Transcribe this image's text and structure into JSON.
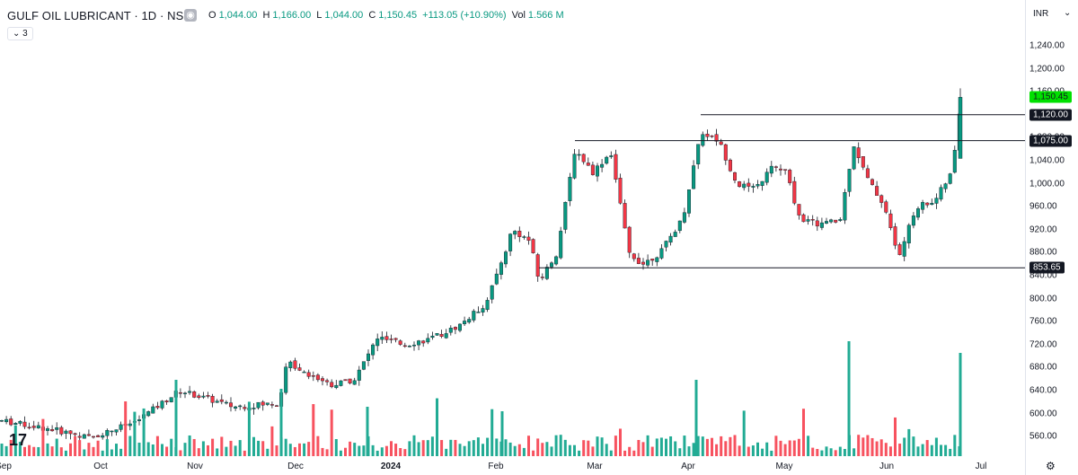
{
  "header": {
    "title": "GULF OIL LUBRICANT · 1D · NSE",
    "ohlc": {
      "o_label": "O",
      "o_value": "1,044.00",
      "h_label": "H",
      "h_value": "1,166.00",
      "l_label": "L",
      "l_value": "1,044.00",
      "c_label": "C",
      "c_value": "1,150.45",
      "change": "+113.05 (+10.90%)",
      "vol_label": "Vol",
      "vol_value": "1.566 M"
    },
    "indicators_badge": "3"
  },
  "price_axis": {
    "currency": "INR",
    "ticks": [
      "1,240.00",
      "1,200.00",
      "1,160.00",
      "1,120.00",
      "1,080.00",
      "1,040.00",
      "1,000.00",
      "960.00",
      "920.00",
      "880.00",
      "840.00",
      "800.00",
      "760.00",
      "720.00",
      "680.00",
      "640.00",
      "600.00",
      "560.00"
    ],
    "labels": {
      "last": "1,150.45",
      "line1": "1,120.00",
      "line2": "1,075.00",
      "line3": "853.65"
    }
  },
  "time_axis": {
    "ticks": [
      "Sep",
      "Oct",
      "Nov",
      "Dec",
      "2024",
      "Feb",
      "Mar",
      "Apr",
      "May",
      "Jun",
      "Jul"
    ]
  },
  "colors": {
    "up": "#089981",
    "down": "#f23645",
    "vol_up": "#22ab94",
    "vol_down": "#f7525f",
    "last_price": "#00e000"
  },
  "icons": {
    "visibility": "eye-icon",
    "settings": "gear-icon",
    "logo": "tradingview-logo"
  },
  "chart_data": {
    "type": "candlestick",
    "symbol": "GULF OIL LUBRICANT",
    "interval": "1D",
    "exchange": "NSE",
    "horizontal_levels": [
      1120.0,
      1075.0,
      853.65
    ],
    "last_close": 1150.45,
    "ylim": [
      540,
      1260
    ],
    "candles_sample": [
      {
        "date": "2024-06-28",
        "open": 1044.0,
        "high": 1166.0,
        "low": 1044.0,
        "close": 1150.45,
        "volume": "1.566M"
      }
    ]
  }
}
